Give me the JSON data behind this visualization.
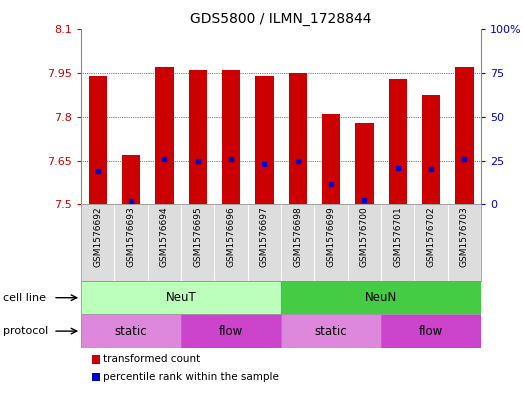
{
  "title": "GDS5800 / ILMN_1728844",
  "samples": [
    "GSM1576692",
    "GSM1576693",
    "GSM1576694",
    "GSM1576695",
    "GSM1576696",
    "GSM1576697",
    "GSM1576698",
    "GSM1576699",
    "GSM1576700",
    "GSM1576701",
    "GSM1576702",
    "GSM1576703"
  ],
  "bar_values": [
    7.94,
    7.67,
    7.97,
    7.96,
    7.96,
    7.94,
    7.95,
    7.81,
    7.78,
    7.93,
    7.875,
    7.97
  ],
  "percentile_values": [
    7.615,
    7.51,
    7.655,
    7.65,
    7.655,
    7.64,
    7.65,
    7.57,
    7.515,
    7.625,
    7.62,
    7.655
  ],
  "ymin": 7.5,
  "ymax": 8.1,
  "yticks": [
    7.5,
    7.65,
    7.8,
    7.95,
    8.1
  ],
  "ytick_labels": [
    "7.5",
    "7.65",
    "7.8",
    "7.95",
    "8.1"
  ],
  "right_yticks": [
    0,
    25,
    50,
    75,
    100
  ],
  "right_ytick_labels": [
    "0",
    "25",
    "50",
    "75",
    "100%"
  ],
  "bar_color": "#cc0000",
  "percentile_color": "#0000cc",
  "cell_lines": [
    [
      "NeuT",
      0,
      5,
      "#bbffbb"
    ],
    [
      "NeuN",
      6,
      11,
      "#44cc44"
    ]
  ],
  "protocols": [
    [
      "static",
      0,
      2,
      "#dd88dd"
    ],
    [
      "flow",
      3,
      5,
      "#cc44cc"
    ],
    [
      "static",
      6,
      8,
      "#dd88dd"
    ],
    [
      "flow",
      9,
      11,
      "#cc44cc"
    ]
  ],
  "legend_bar_color": "#cc0000",
  "legend_dot_color": "#0000cc",
  "legend_label1": "transformed count",
  "legend_label2": "percentile rank within the sample",
  "bg_color": "#dddddd"
}
